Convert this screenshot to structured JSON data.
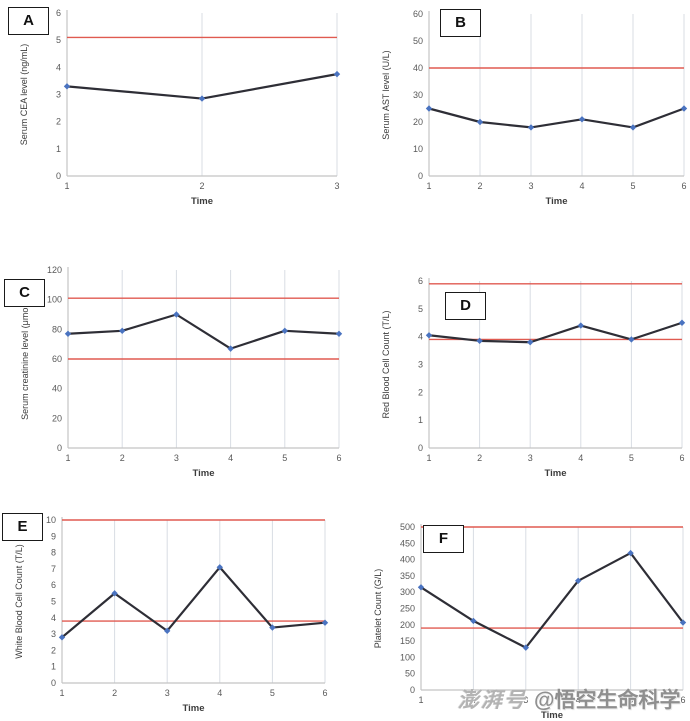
{
  "colors": {
    "line": "#2e2e36",
    "marker": "#4a73c0",
    "ref_line": "#e05a50",
    "grid": "#d8dde3",
    "axis": "#c4c4c4",
    "tick_text": "#595959",
    "label_text": "#3c3c3c"
  },
  "watermark": {
    "platform": "澎湃号",
    "account": "@悟空生命科学"
  },
  "chart_data": [
    {
      "id": "A",
      "panel_label": "A",
      "type": "line",
      "x": [
        1,
        2,
        3
      ],
      "values": [
        3.3,
        2.85,
        3.75
      ],
      "ref_lines": [
        5.1
      ],
      "title": "",
      "ylabel": "Serum CEA level (ng/mL)",
      "xlabel": "Time",
      "ylim": [
        0,
        6
      ],
      "ytick_step": 1,
      "grid": "vertical-only",
      "legend": "none"
    },
    {
      "id": "B",
      "panel_label": "B",
      "type": "line",
      "x": [
        1,
        2,
        3,
        4,
        5,
        6
      ],
      "values": [
        25,
        20,
        18,
        21,
        18,
        25
      ],
      "ref_lines": [
        40
      ],
      "title": "",
      "ylabel": "Serum AST level (U/L)",
      "xlabel": "Time",
      "ylim": [
        0,
        60
      ],
      "ytick_step": 10,
      "grid": "vertical-only",
      "legend": "none"
    },
    {
      "id": "C",
      "panel_label": "C",
      "type": "line",
      "x": [
        1,
        2,
        3,
        4,
        5,
        6
      ],
      "values": [
        77,
        79,
        90,
        67,
        79,
        77
      ],
      "ref_lines": [
        101,
        60
      ],
      "title": "",
      "ylabel": "Serum creatinine level (μmol/l)",
      "xlabel": "Time",
      "ylim": [
        0,
        120
      ],
      "ytick_step": 20,
      "grid": "vertical-only",
      "legend": "none"
    },
    {
      "id": "D",
      "panel_label": "D",
      "type": "line",
      "x": [
        1,
        2,
        3,
        4,
        5,
        6
      ],
      "values": [
        4.05,
        3.85,
        3.8,
        4.4,
        3.9,
        4.5
      ],
      "ref_lines": [
        5.9,
        3.9
      ],
      "title": "",
      "ylabel": "Red Blood Cell Count (T/L)",
      "xlabel": "Time",
      "ylim": [
        0,
        6
      ],
      "ytick_step": 1,
      "grid": "vertical-only",
      "legend": "none"
    },
    {
      "id": "E",
      "panel_label": "E",
      "type": "line",
      "x": [
        1,
        2,
        3,
        4,
        5,
        6
      ],
      "values": [
        2.8,
        5.5,
        3.2,
        7.1,
        3.4,
        3.7
      ],
      "ref_lines": [
        10,
        3.8
      ],
      "title": "",
      "ylabel": "White Blood Cell Count (T/L)",
      "xlabel": "Time",
      "ylim": [
        0,
        10
      ],
      "ytick_step": 1,
      "grid": "vertical-only",
      "legend": "none"
    },
    {
      "id": "F",
      "panel_label": "F",
      "type": "line",
      "x": [
        1,
        2,
        3,
        4,
        5,
        6
      ],
      "values": [
        315,
        212,
        130,
        335,
        420,
        207
      ],
      "ref_lines": [
        500,
        190
      ],
      "title": "",
      "ylabel": "Platelet Count (G/L)",
      "xlabel": "Time",
      "ylim": [
        0,
        500
      ],
      "ytick_step": 50,
      "grid": "vertical-only",
      "legend": "none"
    }
  ]
}
